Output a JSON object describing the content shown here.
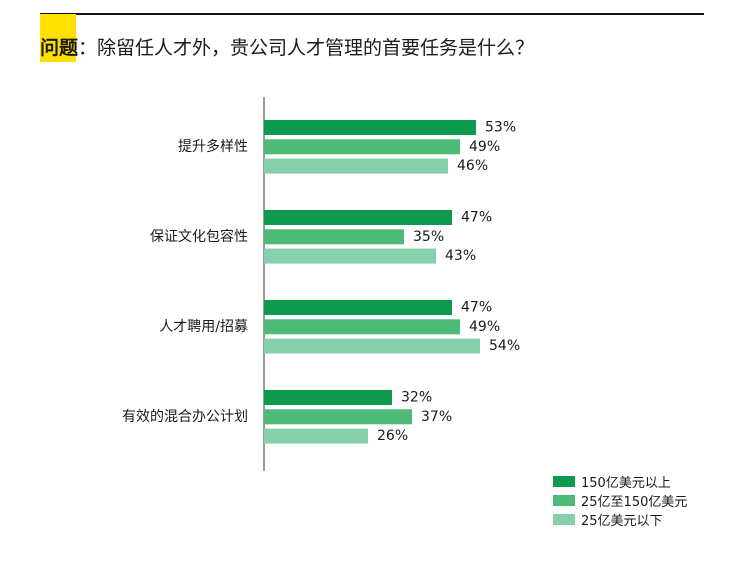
{
  "question": {
    "prefix": "问题",
    "text": "：除留任人才外，贵公司人才管理的首要任务是什么？"
  },
  "chart_data": {
    "type": "bar",
    "orientation": "horizontal",
    "categories": [
      "提升多样性",
      "保证文化包容性",
      "人才聘用/招募",
      "有效的混合办公计划"
    ],
    "series": [
      {
        "name": "150亿美元以上",
        "values": [
          53,
          47,
          47,
          32
        ],
        "color": "#0e9a4e"
      },
      {
        "name": "25亿至150亿美元",
        "values": [
          49,
          35,
          49,
          37
        ],
        "color": "#4dba78"
      },
      {
        "name": "25亿美元以下",
        "values": [
          46,
          43,
          54,
          26
        ],
        "color": "#86d0ab"
      }
    ],
    "value_suffix": "%",
    "xlim": [
      0,
      100
    ],
    "grid": false,
    "legend_position": "bottom-right"
  }
}
